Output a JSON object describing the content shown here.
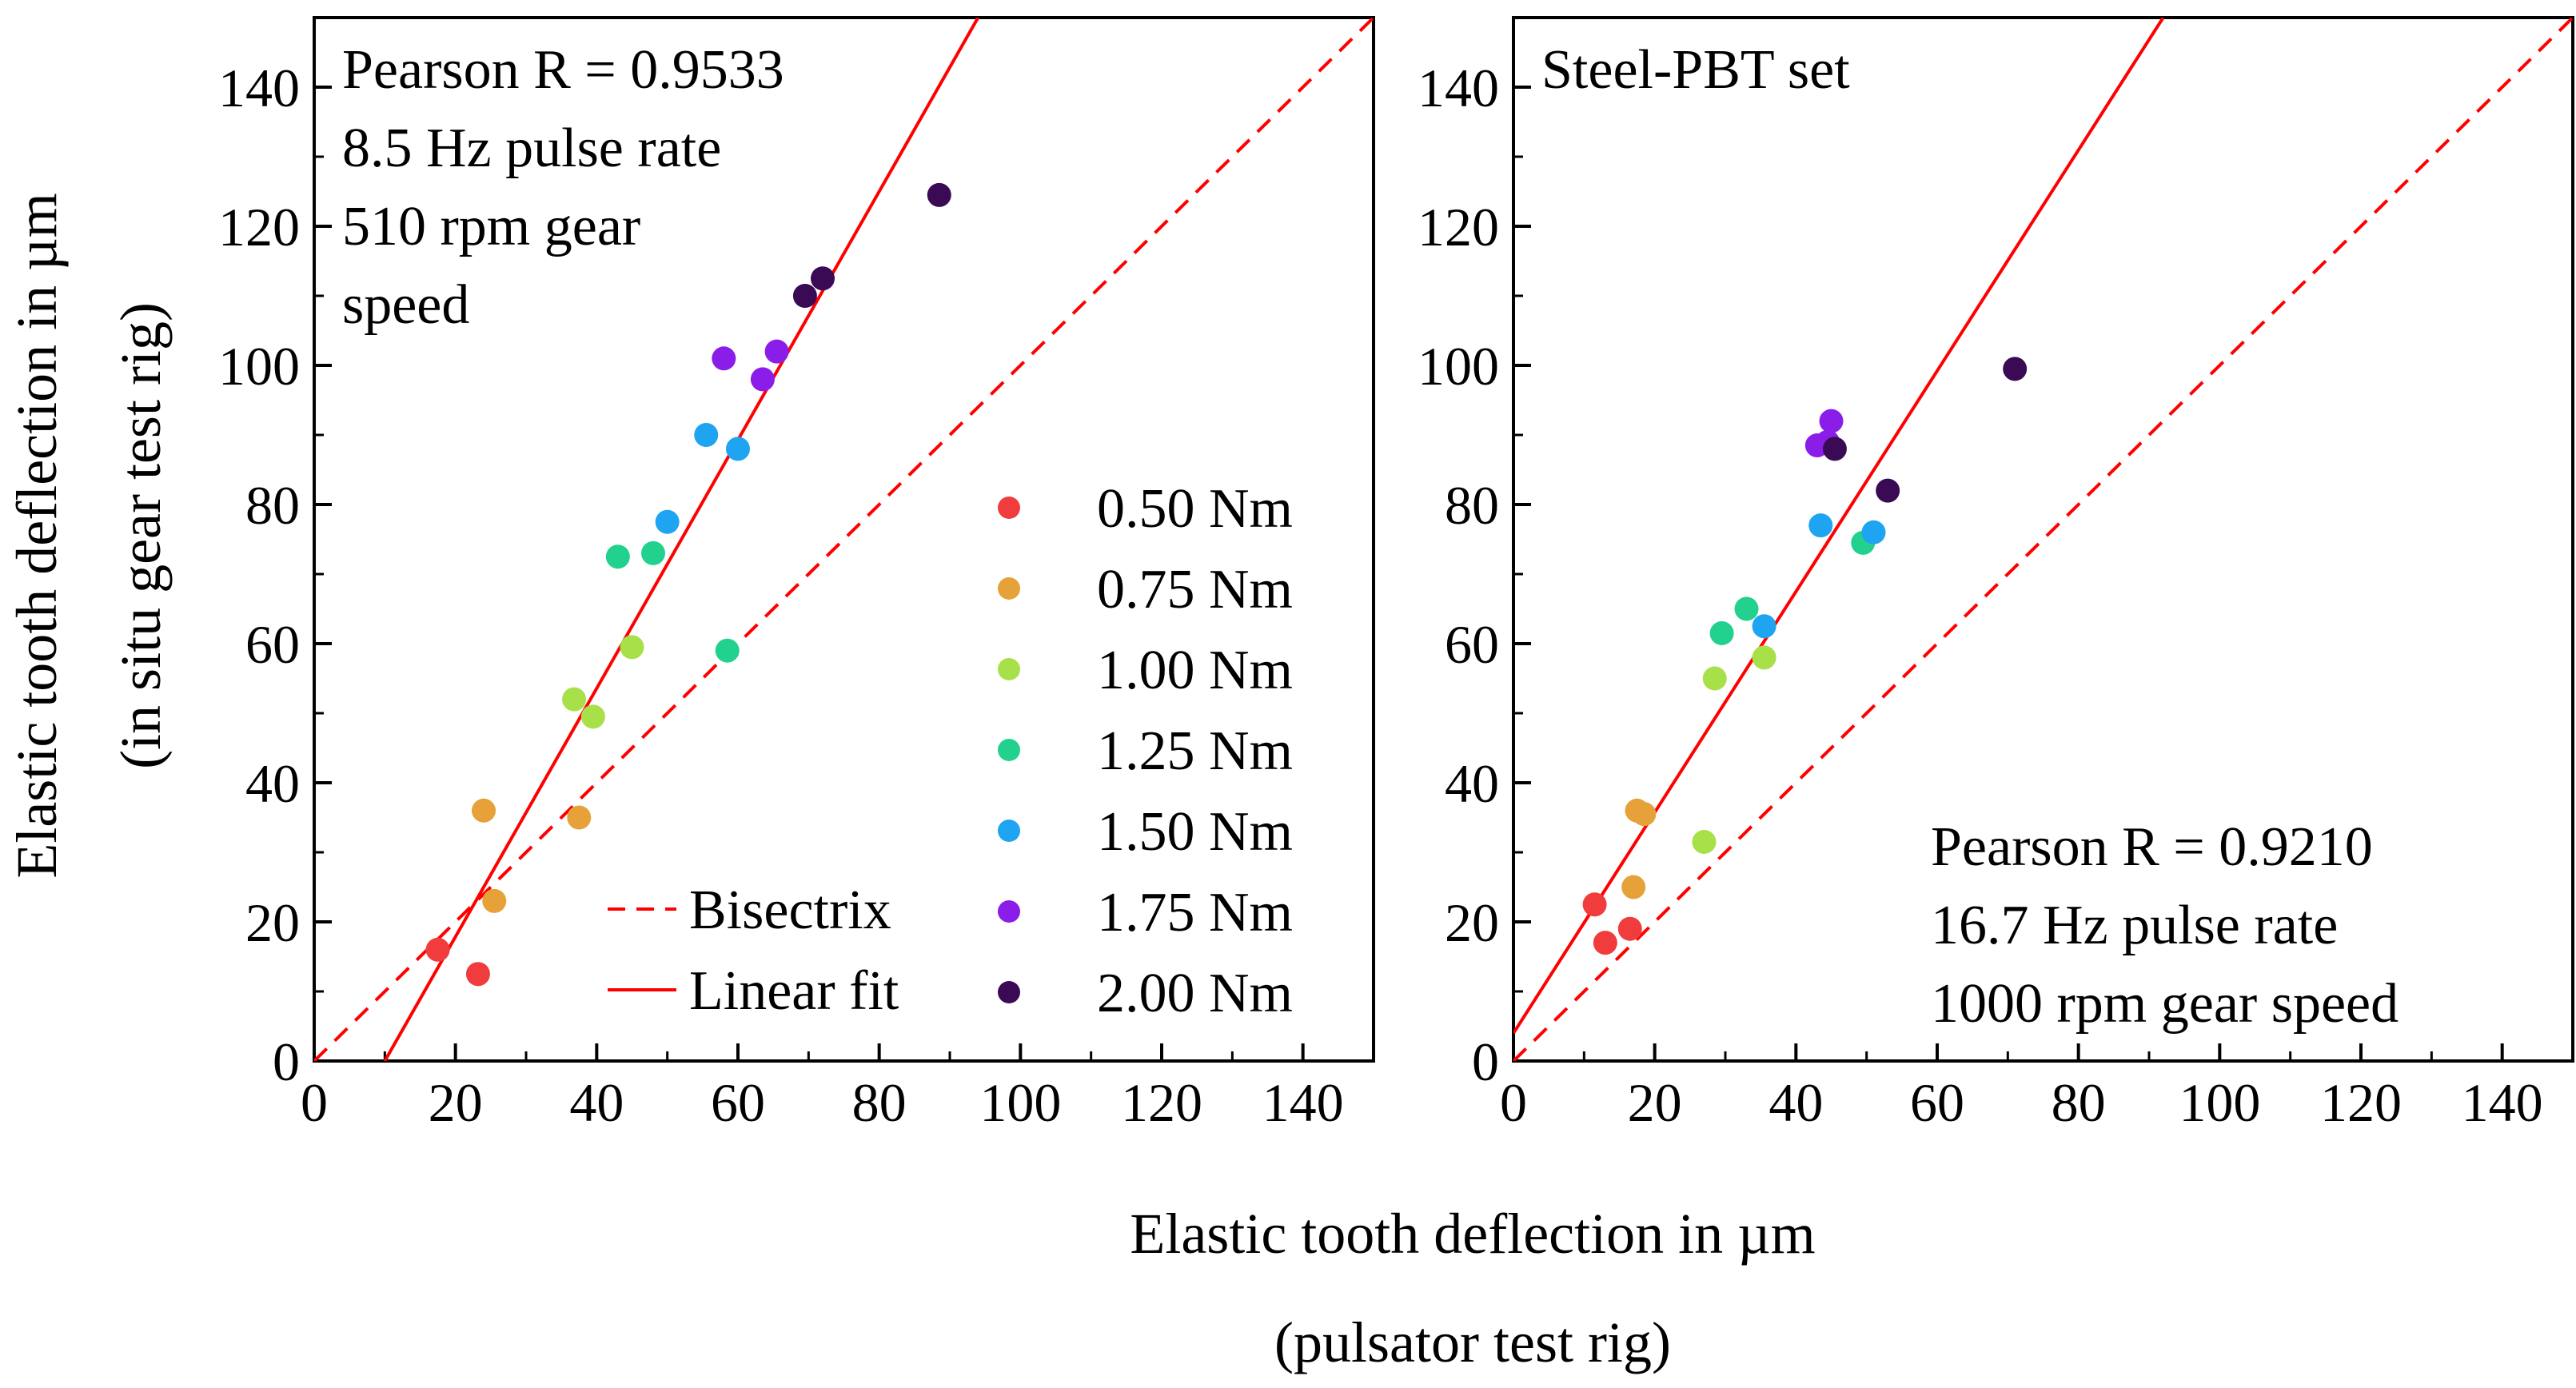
{
  "shared_xlabel": [
    "Elastic tooth deflection in µm",
    "(pulsator test rig)"
  ],
  "shared_ylabel": [
    "Elastic tooth deflection in µm",
    "(in situ gear test rig)"
  ],
  "colors": {
    "0.50 Nm": "#f03c3c",
    "0.75 Nm": "#e6a238",
    "1.00 Nm": "#a8e04a",
    "1.25 Nm": "#22d18e",
    "1.50 Nm": "#1ea4f0",
    "1.75 Nm": "#8a1ee8",
    "2.00 Nm": "#3a0a55",
    "line": "#ff0000"
  },
  "legend": {
    "lines": [
      {
        "label": "Bisectrix",
        "style": "dashed"
      },
      {
        "label": "Linear fit",
        "style": "solid"
      }
    ],
    "series": [
      "0.50 Nm",
      "0.75 Nm",
      "1.00 Nm",
      "1.25 Nm",
      "1.50 Nm",
      "1.75 Nm",
      "2.00 Nm"
    ]
  },
  "chart_data": [
    {
      "type": "scatter",
      "title": "",
      "xlabel": "Elastic tooth deflection in µm (pulsator test rig)",
      "ylabel": "Elastic tooth deflection in µm (in situ gear test rig)",
      "xlim": [
        0,
        150
      ],
      "ylim": [
        0,
        150
      ],
      "xticks": [
        0,
        20,
        40,
        60,
        80,
        100,
        120,
        140
      ],
      "yticks": [
        0,
        20,
        40,
        60,
        80,
        100,
        120,
        140
      ],
      "annotation": [
        "Pearson R = 0.9533",
        "8.5 Hz pulse rate",
        "510 rpm gear",
        "speed"
      ],
      "fit_line": {
        "points": [
          [
            10,
            0
          ],
          [
            94,
            150
          ]
        ]
      },
      "bisectrix": {
        "points": [
          [
            0,
            0
          ],
          [
            150,
            150
          ]
        ]
      },
      "series": [
        {
          "name": "0.50 Nm",
          "points": [
            [
              17.5,
              16
            ],
            [
              23.2,
              12.5
            ]
          ]
        },
        {
          "name": "0.75 Nm",
          "points": [
            [
              24.0,
              36
            ],
            [
              25.5,
              23
            ],
            [
              37.5,
              35
            ]
          ]
        },
        {
          "name": "1.00 Nm",
          "points": [
            [
              36.8,
              52
            ],
            [
              39.5,
              49.5
            ],
            [
              45,
              59.5
            ]
          ]
        },
        {
          "name": "1.25 Nm",
          "points": [
            [
              43,
              72.5
            ],
            [
              48,
              73
            ],
            [
              58.5,
              59
            ]
          ]
        },
        {
          "name": "1.50 Nm",
          "points": [
            [
              50,
              77.5
            ],
            [
              55.5,
              90
            ],
            [
              60,
              88
            ]
          ]
        },
        {
          "name": "1.75 Nm",
          "points": [
            [
              58,
              101
            ],
            [
              63.5,
              98
            ],
            [
              65.5,
              102
            ]
          ]
        },
        {
          "name": "2.00 Nm",
          "points": [
            [
              69.5,
              110
            ],
            [
              72,
              112.5
            ],
            [
              88.5,
              124.5
            ]
          ]
        }
      ]
    },
    {
      "type": "scatter",
      "title": "",
      "xlabel": "Elastic tooth deflection in µm (pulsator test rig)",
      "ylabel": "",
      "xlim": [
        0,
        150
      ],
      "ylim": [
        0,
        150
      ],
      "xticks": [
        0,
        20,
        40,
        60,
        80,
        100,
        120,
        140
      ],
      "yticks": [
        0,
        20,
        40,
        60,
        80,
        100,
        120,
        140
      ],
      "subtitle": "Steel-PBT set",
      "annotation": [
        "Pearson R = 0.9210",
        "16.7 Hz pulse rate",
        "1000 rpm gear speed"
      ],
      "fit_line": {
        "points": [
          [
            0,
            4
          ],
          [
            92,
            150
          ]
        ]
      },
      "bisectrix": {
        "points": [
          [
            0,
            0
          ],
          [
            150,
            150
          ]
        ]
      },
      "series": [
        {
          "name": "0.50 Nm",
          "points": [
            [
              11.5,
              22.5
            ],
            [
              13,
              17
            ],
            [
              16.5,
              19
            ]
          ]
        },
        {
          "name": "0.75 Nm",
          "points": [
            [
              17,
              25
            ],
            [
              17.5,
              36
            ],
            [
              18.5,
              35.5
            ]
          ]
        },
        {
          "name": "1.00 Nm",
          "points": [
            [
              27,
              31.5
            ],
            [
              28.5,
              55
            ],
            [
              35.5,
              58
            ]
          ]
        },
        {
          "name": "1.25 Nm",
          "points": [
            [
              29.5,
              61.5
            ],
            [
              33,
              65
            ],
            [
              49.5,
              74.5
            ]
          ]
        },
        {
          "name": "1.50 Nm",
          "points": [
            [
              35.5,
              62.5
            ],
            [
              43.5,
              77
            ],
            [
              51,
              76
            ]
          ]
        },
        {
          "name": "1.75 Nm",
          "points": [
            [
              43,
              88.5
            ],
            [
              44.5,
              89
            ],
            [
              45,
              92
            ]
          ]
        },
        {
          "name": "2.00 Nm",
          "points": [
            [
              45.5,
              88
            ],
            [
              53,
              82
            ],
            [
              71,
              99.5
            ]
          ]
        }
      ]
    }
  ]
}
